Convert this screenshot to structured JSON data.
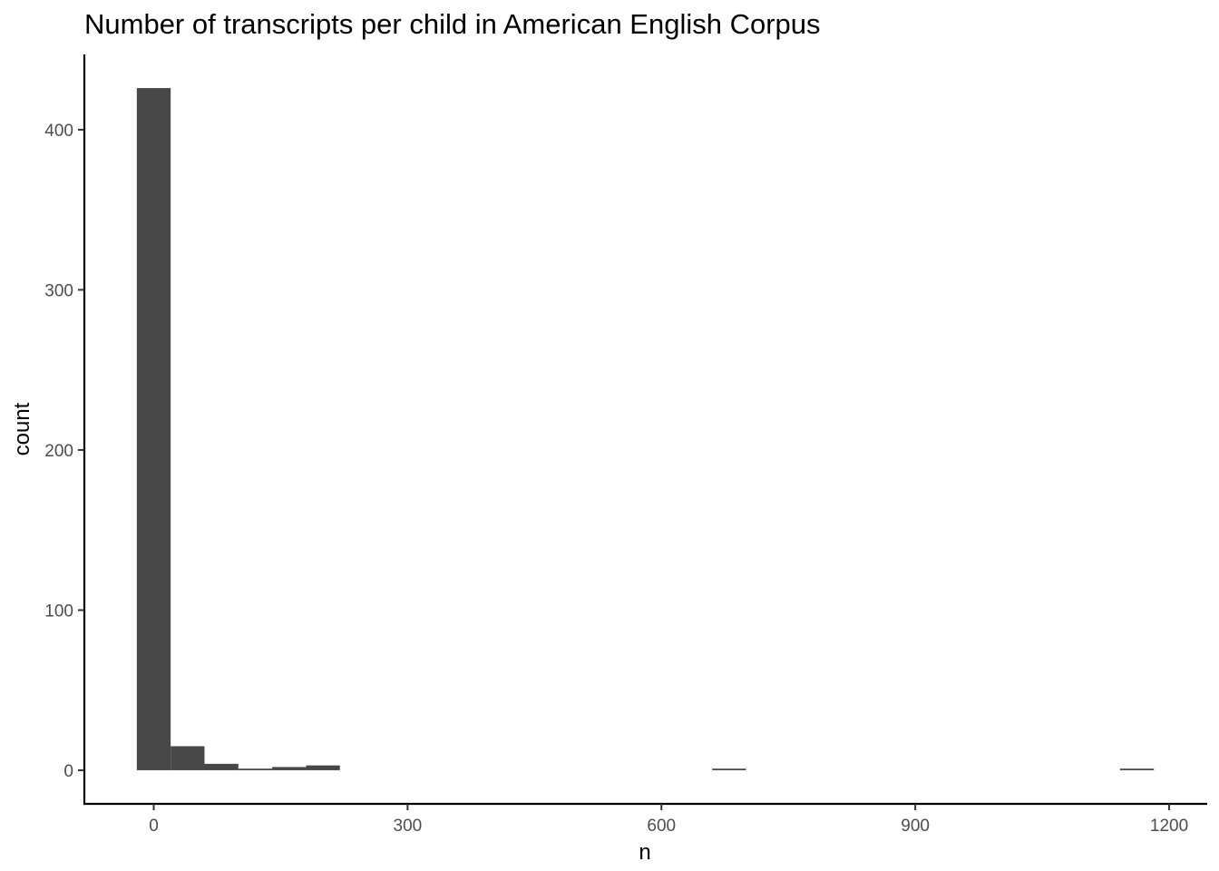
{
  "chart_data": {
    "type": "bar",
    "title": "Number of transcripts per child in American English Corpus",
    "xlabel": "n",
    "ylabel": "count",
    "x_ticks": [
      0,
      300,
      600,
      900,
      1200
    ],
    "y_ticks": [
      0,
      100,
      200,
      300,
      400
    ],
    "xlim": [
      -82,
      1245
    ],
    "ylim": [
      -21,
      447
    ],
    "grid": false,
    "legend": "none",
    "bar_color": "#474747",
    "bins": [
      {
        "x_start": -20,
        "x_end": 20,
        "count": 426
      },
      {
        "x_start": 20,
        "x_end": 60,
        "count": 15
      },
      {
        "x_start": 60,
        "x_end": 100,
        "count": 4
      },
      {
        "x_start": 100,
        "x_end": 140,
        "count": 1
      },
      {
        "x_start": 140,
        "x_end": 180,
        "count": 2
      },
      {
        "x_start": 180,
        "x_end": 220,
        "count": 3
      },
      {
        "x_start": 660,
        "x_end": 700,
        "count": 1
      },
      {
        "x_start": 1142,
        "x_end": 1182,
        "count": 1
      }
    ]
  }
}
